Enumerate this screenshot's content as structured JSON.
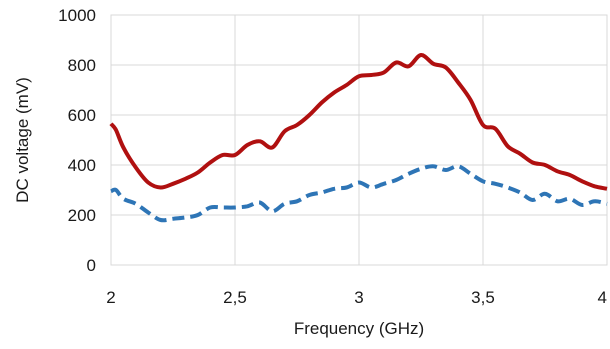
{
  "chart_data": {
    "type": "line",
    "title": "",
    "xlabel": "Frequency (GHz)",
    "ylabel": "DC voltage (mV)",
    "xlim": [
      2,
      4
    ],
    "ylim": [
      0,
      1000
    ],
    "x_ticks": [
      2,
      2.5,
      3,
      3.5,
      4
    ],
    "x_tick_labels": [
      "2",
      "2,5",
      "3",
      "3,5",
      "4"
    ],
    "y_ticks": [
      0,
      200,
      400,
      600,
      800,
      1000
    ],
    "y_tick_labels": [
      "0",
      "200",
      "400",
      "600",
      "800",
      "1000"
    ],
    "grid": true,
    "legend": "none",
    "series": [
      {
        "color": "#b01010",
        "dash": "solid",
        "x": [
          2.0,
          2.02,
          2.05,
          2.1,
          2.15,
          2.2,
          2.25,
          2.3,
          2.35,
          2.4,
          2.45,
          2.5,
          2.55,
          2.6,
          2.65,
          2.7,
          2.75,
          2.8,
          2.85,
          2.9,
          2.95,
          3.0,
          3.05,
          3.1,
          3.15,
          3.2,
          3.25,
          3.3,
          3.35,
          3.4,
          3.45,
          3.5,
          3.55,
          3.6,
          3.65,
          3.7,
          3.75,
          3.8,
          3.85,
          3.9,
          3.95,
          4.0
        ],
        "values": [
          565,
          540,
          470,
          390,
          330,
          310,
          325,
          345,
          370,
          410,
          440,
          440,
          480,
          495,
          470,
          535,
          560,
          600,
          650,
          690,
          720,
          755,
          760,
          770,
          810,
          795,
          840,
          805,
          790,
          730,
          660,
          560,
          545,
          475,
          445,
          410,
          400,
          375,
          360,
          335,
          315,
          305
        ]
      },
      {
        "color": "#2e75b6",
        "dash": "dashed",
        "x": [
          2.0,
          2.02,
          2.05,
          2.1,
          2.15,
          2.2,
          2.25,
          2.3,
          2.35,
          2.4,
          2.45,
          2.5,
          2.55,
          2.6,
          2.65,
          2.7,
          2.75,
          2.8,
          2.85,
          2.9,
          2.95,
          3.0,
          3.05,
          3.1,
          3.15,
          3.2,
          3.25,
          3.3,
          3.35,
          3.4,
          3.45,
          3.5,
          3.55,
          3.6,
          3.65,
          3.7,
          3.75,
          3.8,
          3.85,
          3.9,
          3.95,
          4.0
        ],
        "values": [
          295,
          300,
          265,
          245,
          210,
          180,
          185,
          190,
          200,
          230,
          230,
          230,
          235,
          250,
          215,
          245,
          255,
          280,
          290,
          305,
          310,
          330,
          310,
          325,
          340,
          365,
          385,
          395,
          380,
          395,
          365,
          335,
          325,
          310,
          290,
          260,
          285,
          255,
          265,
          240,
          255,
          245
        ]
      }
    ]
  }
}
